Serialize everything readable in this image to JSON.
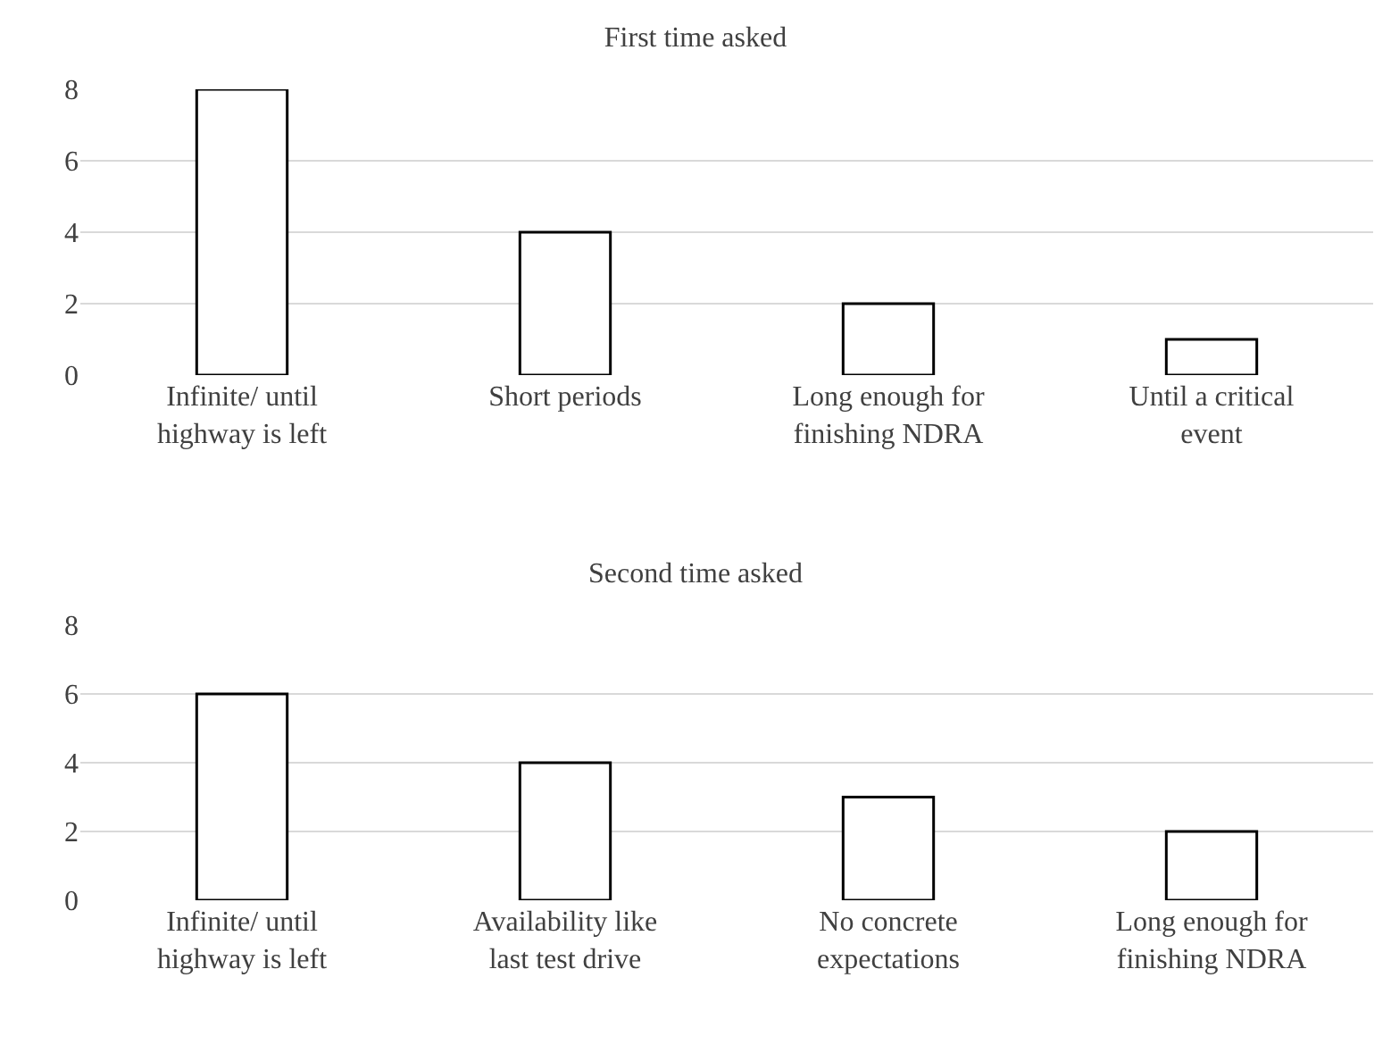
{
  "chart_data": [
    {
      "type": "bar",
      "title": "First time asked",
      "categories": [
        "Infinite/ until highway is left",
        "Short periods",
        "Long enough for finishing NDRA",
        "Until a critical event"
      ],
      "values": [
        8,
        4,
        2,
        1
      ],
      "color": "#ffffff",
      "ylim": [
        0,
        8
      ],
      "yticks": [
        0,
        2,
        4,
        6,
        8
      ],
      "grid": "y"
    },
    {
      "type": "bar",
      "title": "Second time asked",
      "categories": [
        "Infinite/ until highway is left",
        "Availability like last test drive",
        "No concrete expectations",
        "Long enough for finishing NDRA"
      ],
      "values": [
        6,
        4,
        3,
        2
      ],
      "color": "#ffffff",
      "ylim": [
        0,
        8
      ],
      "yticks": [
        0,
        2,
        4,
        6,
        8
      ],
      "grid": "y"
    }
  ]
}
